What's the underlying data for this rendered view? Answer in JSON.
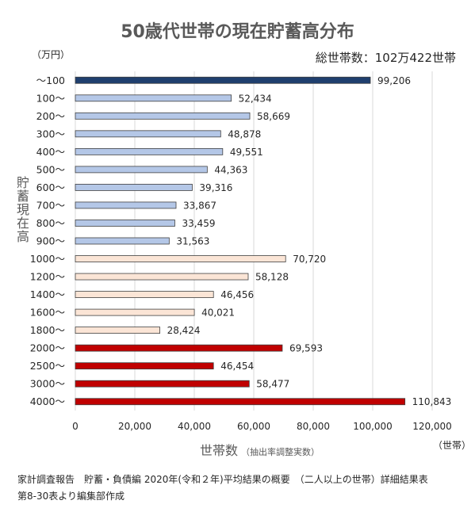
{
  "total_households": "総世帯数：102万422世帯",
  "footer": {
    "line1": "家計調査報告　貯蓄・負債編 2020年(令和２年)平均結果の概要　（二人以上の世帯）詳細結果表",
    "line2": "第8-30表より編集部作成"
  },
  "chart_data": {
    "type": "bar",
    "orientation": "horizontal",
    "title": "50歳代世帯の現在貯蓄高分布",
    "ylabel": "貯蓄現在高",
    "y_unit": "（万円）",
    "xlabel": "世帯数",
    "xlabel_note": "（抽出率調整実数）",
    "x_unit": "（世帯）",
    "categories": [
      "～100",
      "100～",
      "200～",
      "300～",
      "400～",
      "500～",
      "600～",
      "700～",
      "800～",
      "900～",
      "1000～",
      "1200～",
      "1400～",
      "1600～",
      "1800～",
      "2000～",
      "2500～",
      "3000～",
      "4000～"
    ],
    "values": [
      99206,
      52434,
      58669,
      48878,
      49551,
      44363,
      39316,
      33867,
      33459,
      31563,
      70720,
      58128,
      46456,
      40021,
      28424,
      69593,
      46454,
      58477,
      110843
    ],
    "data_labels": [
      "99,206",
      "52,434",
      "58,669",
      "48,878",
      "49,551",
      "44,363",
      "39,316",
      "33,867",
      "33,459",
      "31,563",
      "70,720",
      "58,128",
      "46,456",
      "40,021",
      "28,424",
      "69,593",
      "46,454",
      "58,477",
      "110,843"
    ],
    "xlim": [
      0,
      120000
    ],
    "xticks": [
      0,
      20000,
      40000,
      60000,
      80000,
      100000,
      120000
    ],
    "xtick_labels": [
      "0",
      "20,000",
      "40,000",
      "60,000",
      "80,000",
      "100,000",
      "120,000"
    ],
    "grid": "vertical",
    "bar_colors": [
      "#1f3f6e",
      "#b4c7e7",
      "#b4c7e7",
      "#b4c7e7",
      "#b4c7e7",
      "#b4c7e7",
      "#b4c7e7",
      "#b4c7e7",
      "#b4c7e7",
      "#b4c7e7",
      "#fbe5d6",
      "#fbe5d6",
      "#fbe5d6",
      "#fbe5d6",
      "#fbe5d6",
      "#c00000",
      "#c00000",
      "#c00000",
      "#c00000"
    ],
    "bar_outline": "#404040",
    "grid_color": "#d9d9d9"
  }
}
